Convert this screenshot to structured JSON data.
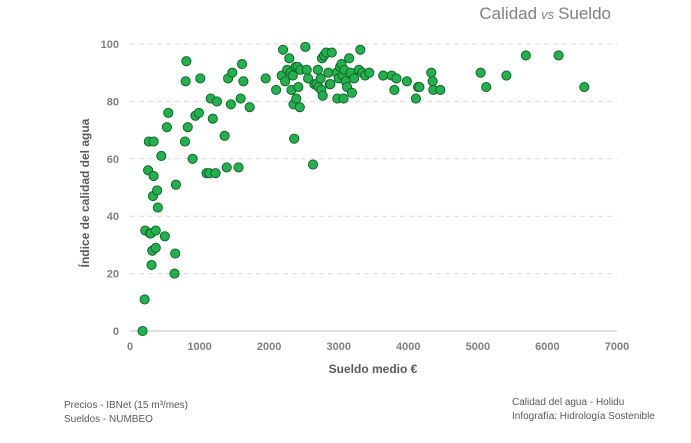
{
  "title": {
    "left": "Calidad",
    "middle": "vs",
    "right": "Sueldo"
  },
  "footer_left": [
    "Precios - IBNet (15 m³/mes)",
    "Sueldos - NUMBEO"
  ],
  "footer_right": [
    "Calidad del agua - Holidu",
    "Infografía: Hidrología Sostenible"
  ],
  "colors": {
    "marker_fill": "#22b14c",
    "marker_stroke": "#0b5e24",
    "grid": "#d9d9d9",
    "axis": "#bfbfbf"
  },
  "chart_data": {
    "type": "scatter",
    "title": "Calidad vs Sueldo",
    "xlabel": "Sueldo medio €",
    "ylabel": "Índice de calidad del agua",
    "xlim": [
      0,
      7000
    ],
    "ylim": [
      0,
      100
    ],
    "xticks": [
      0,
      1000,
      2000,
      3000,
      4000,
      5000,
      6000,
      7000
    ],
    "yticks": [
      0,
      20,
      40,
      60,
      80,
      100
    ],
    "grid": "horizontal-dashed",
    "points": [
      [
        180,
        0
      ],
      [
        210,
        11
      ],
      [
        220,
        35
      ],
      [
        260,
        56
      ],
      [
        270,
        66
      ],
      [
        290,
        34
      ],
      [
        300,
        34
      ],
      [
        310,
        23
      ],
      [
        320,
        28
      ],
      [
        330,
        47
      ],
      [
        340,
        54
      ],
      [
        340,
        66
      ],
      [
        370,
        29
      ],
      [
        370,
        35
      ],
      [
        390,
        49
      ],
      [
        400,
        43
      ],
      [
        450,
        61
      ],
      [
        500,
        33
      ],
      [
        530,
        71
      ],
      [
        550,
        76
      ],
      [
        640,
        20
      ],
      [
        650,
        27
      ],
      [
        660,
        51
      ],
      [
        790,
        66
      ],
      [
        800,
        87
      ],
      [
        810,
        94
      ],
      [
        830,
        71
      ],
      [
        900,
        60
      ],
      [
        940,
        75
      ],
      [
        990,
        76
      ],
      [
        1010,
        88
      ],
      [
        1100,
        55
      ],
      [
        1140,
        55
      ],
      [
        1160,
        81
      ],
      [
        1190,
        74
      ],
      [
        1230,
        55
      ],
      [
        1250,
        80
      ],
      [
        1360,
        68
      ],
      [
        1390,
        57
      ],
      [
        1410,
        88
      ],
      [
        1450,
        79
      ],
      [
        1470,
        90
      ],
      [
        1560,
        57
      ],
      [
        1590,
        81
      ],
      [
        1610,
        93
      ],
      [
        1630,
        87
      ],
      [
        1720,
        78
      ],
      [
        1950,
        88
      ],
      [
        2100,
        84
      ],
      [
        2180,
        89
      ],
      [
        2200,
        98
      ],
      [
        2230,
        87
      ],
      [
        2260,
        91
      ],
      [
        2290,
        95
      ],
      [
        2310,
        90
      ],
      [
        2320,
        84
      ],
      [
        2340,
        89
      ],
      [
        2350,
        79
      ],
      [
        2360,
        67
      ],
      [
        2380,
        92
      ],
      [
        2390,
        81
      ],
      [
        2410,
        92
      ],
      [
        2420,
        85
      ],
      [
        2440,
        78
      ],
      [
        2450,
        91
      ],
      [
        2520,
        99
      ],
      [
        2540,
        91
      ],
      [
        2560,
        88
      ],
      [
        2630,
        58
      ],
      [
        2650,
        86
      ],
      [
        2680,
        86
      ],
      [
        2700,
        91
      ],
      [
        2710,
        85
      ],
      [
        2740,
        88
      ],
      [
        2750,
        84
      ],
      [
        2760,
        95
      ],
      [
        2770,
        82
      ],
      [
        2790,
        96
      ],
      [
        2820,
        97
      ],
      [
        2850,
        90
      ],
      [
        2870,
        86
      ],
      [
        2880,
        86
      ],
      [
        2900,
        97
      ],
      [
        2970,
        90
      ],
      [
        2980,
        81
      ],
      [
        3000,
        88
      ],
      [
        3020,
        92
      ],
      [
        3040,
        93
      ],
      [
        3060,
        89
      ],
      [
        3070,
        81
      ],
      [
        3080,
        91
      ],
      [
        3100,
        87
      ],
      [
        3120,
        85
      ],
      [
        3150,
        95
      ],
      [
        3170,
        90
      ],
      [
        3190,
        83
      ],
      [
        3220,
        88
      ],
      [
        3290,
        91
      ],
      [
        3310,
        98
      ],
      [
        3340,
        90
      ],
      [
        3380,
        89
      ],
      [
        3440,
        90
      ],
      [
        3640,
        89
      ],
      [
        3760,
        89
      ],
      [
        3800,
        84
      ],
      [
        3830,
        88
      ],
      [
        3980,
        87
      ],
      [
        4110,
        81
      ],
      [
        4140,
        85
      ],
      [
        4160,
        85
      ],
      [
        4330,
        90
      ],
      [
        4350,
        87
      ],
      [
        4360,
        84
      ],
      [
        4460,
        84
      ],
      [
        5040,
        90
      ],
      [
        5120,
        85
      ],
      [
        5410,
        89
      ],
      [
        5690,
        96
      ],
      [
        6160,
        96
      ],
      [
        6530,
        85
      ]
    ]
  }
}
